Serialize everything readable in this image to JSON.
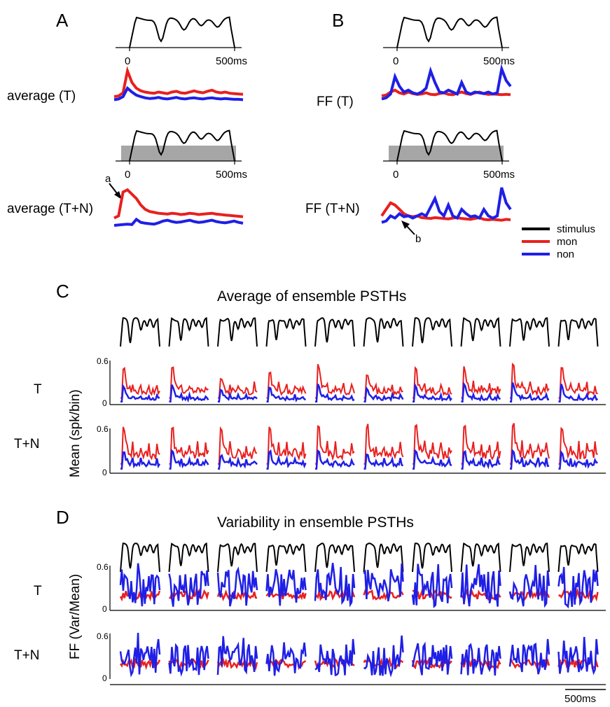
{
  "colors": {
    "stimulus": "#000000",
    "mon": "#e8201f",
    "non": "#1f1fe6",
    "noise_box": "#a6a6a6"
  },
  "panels": {
    "A": {
      "letter": "A",
      "row1_label": "average (T)",
      "row2_label": "average (T+N)",
      "tick_0": "0",
      "tick_500": "500ms",
      "arrow_label": "a"
    },
    "B": {
      "letter": "B",
      "row1_label": "FF (T)",
      "row2_label": "FF (T+N)",
      "tick_0": "0",
      "tick_500": "500ms",
      "arrow_label": "b"
    },
    "C": {
      "letter": "C",
      "title": "Average of ensemble PSTHs",
      "row1_label": "T",
      "row2_label": "T+N",
      "ylabel": "Mean (spk/bin)",
      "ytick_top": "0.6",
      "ytick_bottom": "0"
    },
    "D": {
      "letter": "D",
      "title": "Variability in ensemble PSTHs",
      "row1_label": "T",
      "row2_label": "T+N",
      "ylabel": "FF (Var/Mean)",
      "ytick_top": "0.6",
      "ytick_bottom": "0"
    }
  },
  "legend": {
    "position": "right",
    "items": [
      {
        "label": "stimulus",
        "color": "#000000"
      },
      {
        "label": "mon",
        "color": "#e8201f"
      },
      {
        "label": "non",
        "color": "#1f1fe6"
      }
    ]
  },
  "scale_bar": {
    "label": "500ms"
  },
  "chart_data": [
    {
      "type": "line",
      "panel": "A-top",
      "series": [
        {
          "name": "stimulus"
        },
        {
          "name": "mon"
        },
        {
          "name": "non"
        }
      ],
      "xlim": [
        0,
        500
      ],
      "x_ticks": [
        "0",
        "500ms"
      ],
      "rows": [
        {
          "label": "average (T)",
          "noise": false,
          "mon": [
            0.18,
            0.2,
            0.28,
            0.85,
            0.55,
            0.4,
            0.33,
            0.3,
            0.28,
            0.27,
            0.3,
            0.28,
            0.26,
            0.3,
            0.32,
            0.28,
            0.27,
            0.3,
            0.33,
            0.3,
            0.28,
            0.32,
            0.35,
            0.3,
            0.28,
            0.3,
            0.27,
            0.26,
            0.25,
            0.24
          ],
          "non": [
            0.1,
            0.12,
            0.18,
            0.4,
            0.3,
            0.22,
            0.18,
            0.15,
            0.13,
            0.14,
            0.16,
            0.13,
            0.12,
            0.14,
            0.16,
            0.13,
            0.12,
            0.14,
            0.15,
            0.13,
            0.12,
            0.14,
            0.15,
            0.13,
            0.12,
            0.13,
            0.12,
            0.11,
            0.11,
            0.1
          ]
        },
        {
          "label": "average (T+N)",
          "noise": true,
          "mon": [
            0.25,
            0.3,
            0.85,
            0.9,
            0.8,
            0.7,
            0.55,
            0.45,
            0.4,
            0.38,
            0.36,
            0.35,
            0.34,
            0.36,
            0.35,
            0.33,
            0.34,
            0.36,
            0.35,
            0.33,
            0.34,
            0.35,
            0.36,
            0.34,
            0.33,
            0.32,
            0.31,
            0.3,
            0.29,
            0.28
          ],
          "non": [
            0.08,
            0.09,
            0.1,
            0.11,
            0.1,
            0.22,
            0.15,
            0.13,
            0.12,
            0.11,
            0.14,
            0.18,
            0.2,
            0.17,
            0.15,
            0.16,
            0.18,
            0.2,
            0.17,
            0.15,
            0.16,
            0.18,
            0.2,
            0.17,
            0.15,
            0.14,
            0.16,
            0.18,
            0.15,
            0.13
          ]
        }
      ]
    },
    {
      "type": "line",
      "panel": "B",
      "series": [
        {
          "name": "stimulus"
        },
        {
          "name": "mon"
        },
        {
          "name": "non"
        }
      ],
      "xlim": [
        0,
        500
      ],
      "x_ticks": [
        "0",
        "500ms"
      ],
      "rows": [
        {
          "label": "FF (T)",
          "noise": false,
          "mon": [
            0.2,
            0.22,
            0.3,
            0.35,
            0.28,
            0.25,
            0.3,
            0.26,
            0.24,
            0.25,
            0.28,
            0.24,
            0.23,
            0.26,
            0.28,
            0.24,
            0.23,
            0.27,
            0.3,
            0.26,
            0.24,
            0.28,
            0.3,
            0.26,
            0.24,
            0.25,
            0.24,
            0.23,
            0.24,
            0.23
          ],
          "non": [
            0.12,
            0.15,
            0.25,
            0.7,
            0.45,
            0.3,
            0.35,
            0.28,
            0.25,
            0.3,
            0.4,
            0.85,
            0.55,
            0.3,
            0.28,
            0.35,
            0.3,
            0.25,
            0.55,
            0.3,
            0.25,
            0.3,
            0.28,
            0.26,
            0.3,
            0.25,
            0.28,
            0.9,
            0.6,
            0.45
          ]
        },
        {
          "label": "FF (T+N)",
          "noise": true,
          "mon": [
            0.3,
            0.45,
            0.6,
            0.55,
            0.45,
            0.35,
            0.3,
            0.28,
            0.3,
            0.26,
            0.25,
            0.24,
            0.26,
            0.25,
            0.24,
            0.23,
            0.25,
            0.26,
            0.24,
            0.23,
            0.22,
            0.24,
            0.26,
            0.22,
            0.21,
            0.22,
            0.21,
            0.2,
            0.22,
            0.21
          ],
          "non": [
            0.15,
            0.18,
            0.3,
            0.25,
            0.35,
            0.28,
            0.3,
            0.25,
            0.3,
            0.35,
            0.3,
            0.5,
            0.7,
            0.4,
            0.3,
            0.55,
            0.3,
            0.25,
            0.45,
            0.35,
            0.28,
            0.3,
            0.25,
            0.45,
            0.3,
            0.25,
            0.3,
            0.95,
            0.6,
            0.45
          ]
        }
      ]
    },
    {
      "type": "line",
      "panel": "C",
      "ylabel": "Mean (spk/bin)",
      "ylim": [
        0,
        0.6
      ],
      "yticks": [
        0,
        0.6
      ],
      "n_columns": 10,
      "series": [
        {
          "name": "mon"
        },
        {
          "name": "non"
        }
      ],
      "rows": [
        {
          "label": "T",
          "peak_mon": [
            0.48,
            0.5,
            0.35,
            0.43,
            0.55,
            0.4,
            0.5,
            0.52,
            0.55,
            0.5
          ],
          "peak_non": [
            0.25,
            0.27,
            0.2,
            0.23,
            0.28,
            0.22,
            0.26,
            0.28,
            0.3,
            0.28
          ],
          "level_mon": 0.18,
          "level_non": 0.08
        },
        {
          "label": "T+N",
          "peak_mon": [
            0.62,
            0.6,
            0.6,
            0.62,
            0.63,
            0.6,
            0.63,
            0.62,
            0.63,
            0.6
          ],
          "peak_non": [
            0.28,
            0.3,
            0.22,
            0.28,
            0.3,
            0.25,
            0.3,
            0.28,
            0.3,
            0.28
          ],
          "level_mon": 0.25,
          "level_non": 0.12
        }
      ]
    },
    {
      "type": "line",
      "panel": "D",
      "ylabel": "FF (Var/Mean)",
      "ylim": [
        0,
        0.6
      ],
      "yticks": [
        0,
        0.6
      ],
      "n_columns": 10,
      "series": [
        {
          "name": "mon"
        },
        {
          "name": "non"
        }
      ],
      "rows": [
        {
          "label": "T",
          "level_mon": 0.2,
          "level_non": 0.3,
          "end_peak_non": [
            0.45,
            0.55,
            0.45,
            0.45,
            0.5,
            0.65,
            0.5,
            0.55,
            0.55,
            0.55
          ]
        },
        {
          "label": "T+N",
          "level_mon": 0.2,
          "level_non": 0.25,
          "end_peak_non": [
            0.55,
            0.45,
            0.45,
            0.5,
            0.55,
            0.6,
            0.45,
            0.45,
            0.55,
            0.55
          ]
        }
      ]
    }
  ]
}
